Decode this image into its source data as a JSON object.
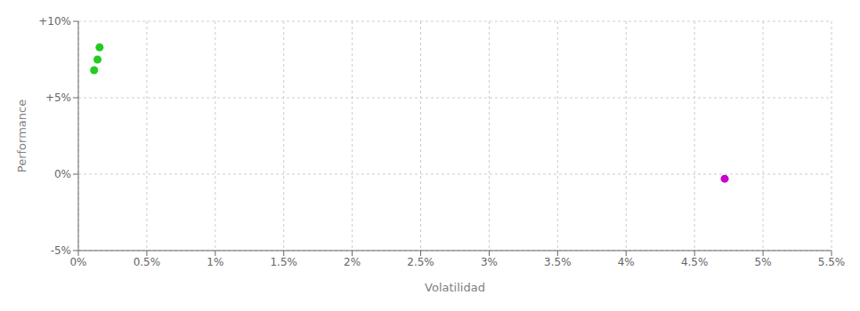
{
  "chart_data": {
    "type": "scatter",
    "xlabel": "Volatilidad",
    "ylabel": "Performance",
    "xlim": [
      0,
      5.5
    ],
    "ylim": [
      -5,
      10
    ],
    "xticks": [
      {
        "value": 0,
        "label": "0%"
      },
      {
        "value": 0.5,
        "label": "0.5%"
      },
      {
        "value": 1.0,
        "label": "1%"
      },
      {
        "value": 1.5,
        "label": "1.5%"
      },
      {
        "value": 2.0,
        "label": "2%"
      },
      {
        "value": 2.5,
        "label": "2.5%"
      },
      {
        "value": 3.0,
        "label": "3%"
      },
      {
        "value": 3.5,
        "label": "3.5%"
      },
      {
        "value": 4.0,
        "label": "4%"
      },
      {
        "value": 4.5,
        "label": "4.5%"
      },
      {
        "value": 5.0,
        "label": "5%"
      },
      {
        "value": 5.5,
        "label": "5.5%"
      }
    ],
    "yticks": [
      {
        "value": -5,
        "label": "-5%"
      },
      {
        "value": 0,
        "label": "0%"
      },
      {
        "value": 5,
        "label": "+5%"
      },
      {
        "value": 10,
        "label": "+10%"
      }
    ],
    "grid": true,
    "series": [
      {
        "color": "#22cc22",
        "marker": "circle",
        "x": [
          0.155,
          0.14,
          0.115
        ],
        "values": [
          8.3,
          7.5,
          6.8
        ]
      },
      {
        "color": "#cc00cc",
        "marker": "circle",
        "x": [
          4.72
        ],
        "values": [
          -0.3
        ]
      }
    ]
  }
}
